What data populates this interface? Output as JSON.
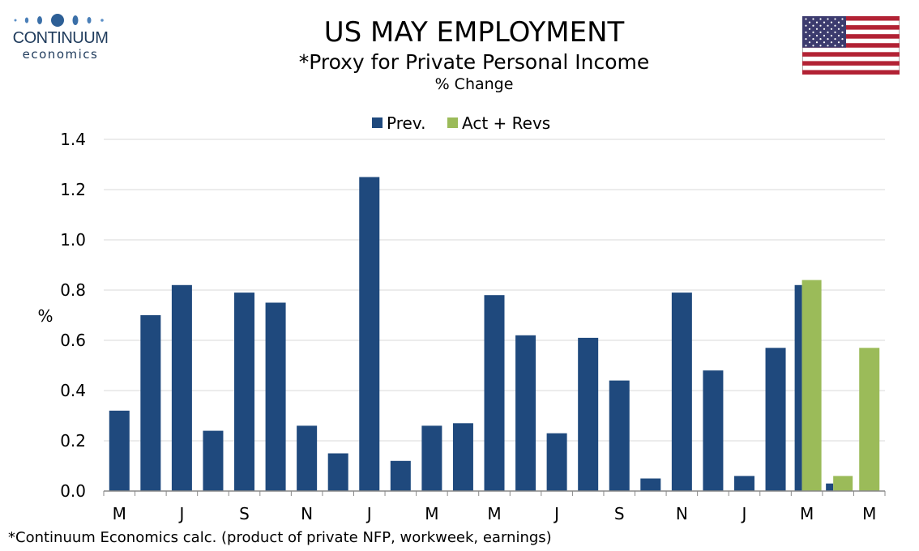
{
  "logo": {
    "brand": "CONTINUUM",
    "sub": "economics"
  },
  "title": "US MAY EMPLOYMENT",
  "subtitle": "*Proxy for Private Personal Income",
  "subtitle2": "% Change",
  "footnote": "*Continuum Economics calc. (product of private NFP, workweek, earnings)",
  "colors": {
    "prev": "#1f497d",
    "act": "#9bbb59",
    "grid": "#d9d9d9",
    "axis": "#000000"
  },
  "flag_icon": "us-flag-icon",
  "chart_data": {
    "type": "bar",
    "title": "US MAY EMPLOYMENT",
    "ylabel": "%",
    "ylim": [
      0,
      1.4
    ],
    "yticks": [
      "0.0",
      "0.2",
      "0.4",
      "0.6",
      "0.8",
      "1.0",
      "1.2",
      "1.4"
    ],
    "legend_position": "top-center",
    "grid": true,
    "categories": [
      "M",
      "",
      "J",
      "",
      "S",
      "",
      "N",
      "",
      "J",
      "",
      "M",
      "",
      "M",
      "",
      "J",
      "",
      "S",
      "",
      "N",
      "",
      "J",
      "",
      "M",
      "",
      "M"
    ],
    "series": [
      {
        "name": "Prev.",
        "color": "#1f497d",
        "values": [
          0.32,
          0.7,
          0.82,
          0.24,
          0.79,
          0.75,
          0.26,
          0.15,
          1.25,
          0.12,
          0.26,
          0.27,
          0.78,
          0.62,
          0.23,
          0.61,
          0.44,
          0.05,
          0.79,
          0.48,
          0.06,
          0.57,
          0.82,
          0.03,
          null
        ]
      },
      {
        "name": "Act + Revs",
        "color": "#9bbb59",
        "values": [
          null,
          null,
          null,
          null,
          null,
          null,
          null,
          null,
          null,
          null,
          null,
          null,
          null,
          null,
          null,
          null,
          null,
          null,
          null,
          null,
          null,
          null,
          0.84,
          0.06,
          0.57
        ]
      }
    ]
  }
}
